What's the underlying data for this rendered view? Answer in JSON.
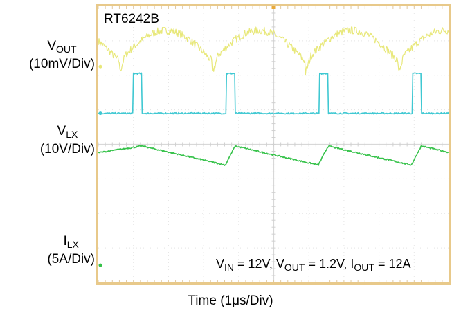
{
  "chart_data": {
    "type": "line",
    "title": "RT6242B",
    "xlabel": "Time (1μs/Div)",
    "x_divisions": 10,
    "y_divisions": 8,
    "grid": true,
    "annotation": {
      "parts": [
        {
          "main": "V",
          "sub": "IN",
          "rest": " = 12V, "
        },
        {
          "main": "V",
          "sub": "OUT",
          "rest": " = 1.2V, "
        },
        {
          "main": "I",
          "sub": "OUT",
          "rest": " = 12A"
        }
      ]
    },
    "channels": [
      {
        "name_main": "V",
        "name_sub": "OUT",
        "scale": "(10mV/Div)",
        "color": "#e8e87a",
        "shape": "ripple",
        "period_div": 2.65,
        "first_valley_div": 0.6,
        "baseline_div": 6.85,
        "amplitude_div": 0.9
      },
      {
        "name_main": "V",
        "name_sub": "LX",
        "scale": "(10V/Div)",
        "color": "#3fc8d2",
        "shape": "pulse",
        "period_div": 2.65,
        "first_pulse_div": 1.0,
        "pulse_width_div": 0.25,
        "low_div": 4.9,
        "high_div": 6.05
      },
      {
        "name_main": "I",
        "name_sub": "LX",
        "scale": "(5A/Div)",
        "color": "#36c24a",
        "shape": "sawtooth",
        "period_div": 2.65,
        "first_peak_div": 1.25,
        "valley_div": 3.4,
        "peak_div": 3.95
      }
    ]
  }
}
